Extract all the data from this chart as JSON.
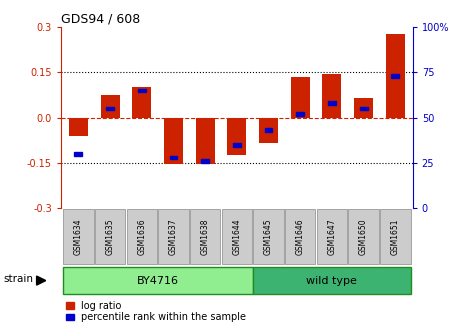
{
  "title": "GDS94 / 608",
  "samples": [
    "GSM1634",
    "GSM1635",
    "GSM1636",
    "GSM1637",
    "GSM1638",
    "GSM1644",
    "GSM1645",
    "GSM1646",
    "GSM1647",
    "GSM1650",
    "GSM1651"
  ],
  "log_ratio": [
    -0.06,
    0.075,
    0.1,
    -0.155,
    -0.155,
    -0.125,
    -0.085,
    0.135,
    0.145,
    0.065,
    0.275
  ],
  "percentile_rank": [
    30,
    55,
    65,
    28,
    26,
    35,
    43,
    52,
    58,
    55,
    73
  ],
  "strain_groups": [
    {
      "label": "BY4716",
      "start": 0,
      "end": 5,
      "color": "#90EE90"
    },
    {
      "label": "wild type",
      "start": 6,
      "end": 10,
      "color": "#3CB371"
    }
  ],
  "bar_color": "#CC2200",
  "percentile_color": "#0000CC",
  "ylim_left": [
    -0.3,
    0.3
  ],
  "ylim_right": [
    0,
    100
  ],
  "yticks_left": [
    -0.3,
    -0.15,
    0.0,
    0.15,
    0.3
  ],
  "yticks_right": [
    0,
    25,
    50,
    75,
    100
  ],
  "ytick_labels_right": [
    "0",
    "25",
    "50",
    "75",
    "100%"
  ],
  "dotted_lines": [
    -0.15,
    0.15
  ],
  "background_color": "#FFFFFF",
  "bar_width": 0.6,
  "strain_label": "strain",
  "legend_log_ratio": "log ratio",
  "legend_percentile": "percentile rank within the sample"
}
